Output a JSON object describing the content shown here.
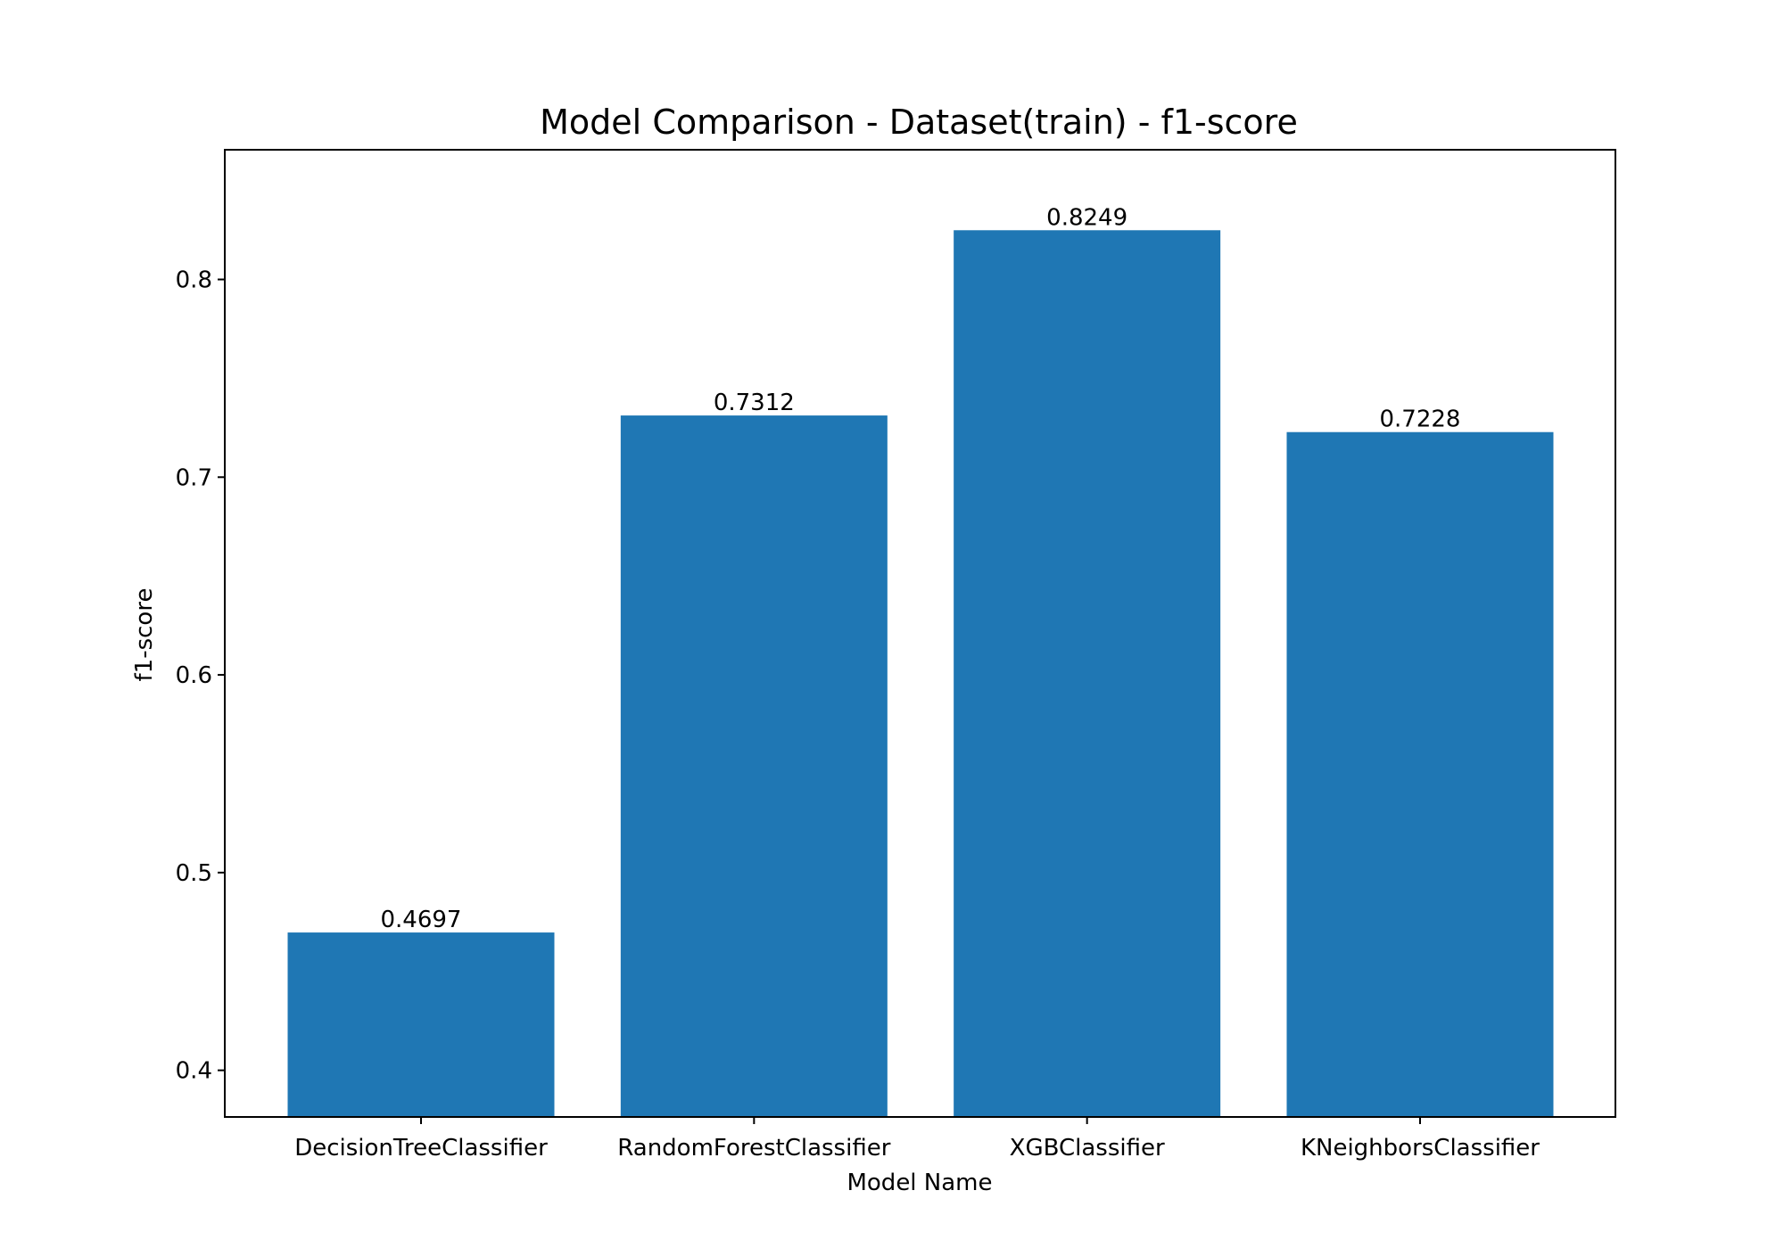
{
  "chart_data": {
    "type": "bar",
    "title": "Model Comparison - Dataset(train) - f1-score",
    "xlabel": "Model Name",
    "ylabel": "f1-score",
    "categories": [
      "DecisionTreeClassifier",
      "RandomForestClassifier",
      "XGBClassifier",
      "KNeighborsClassifier"
    ],
    "values": [
      0.4697,
      0.7312,
      0.8249,
      0.7228
    ],
    "value_labels": [
      "0.4697",
      "0.7312",
      "0.8249",
      "0.7228"
    ],
    "ylim": [
      0.3764,
      0.8656
    ],
    "yticks": [
      0.4,
      0.5,
      0.6,
      0.7,
      0.8
    ],
    "ytick_labels": [
      "0.4",
      "0.5",
      "0.6",
      "0.7",
      "0.8"
    ],
    "grid": false,
    "legend": "none",
    "bar_color": "#1f77b4"
  }
}
